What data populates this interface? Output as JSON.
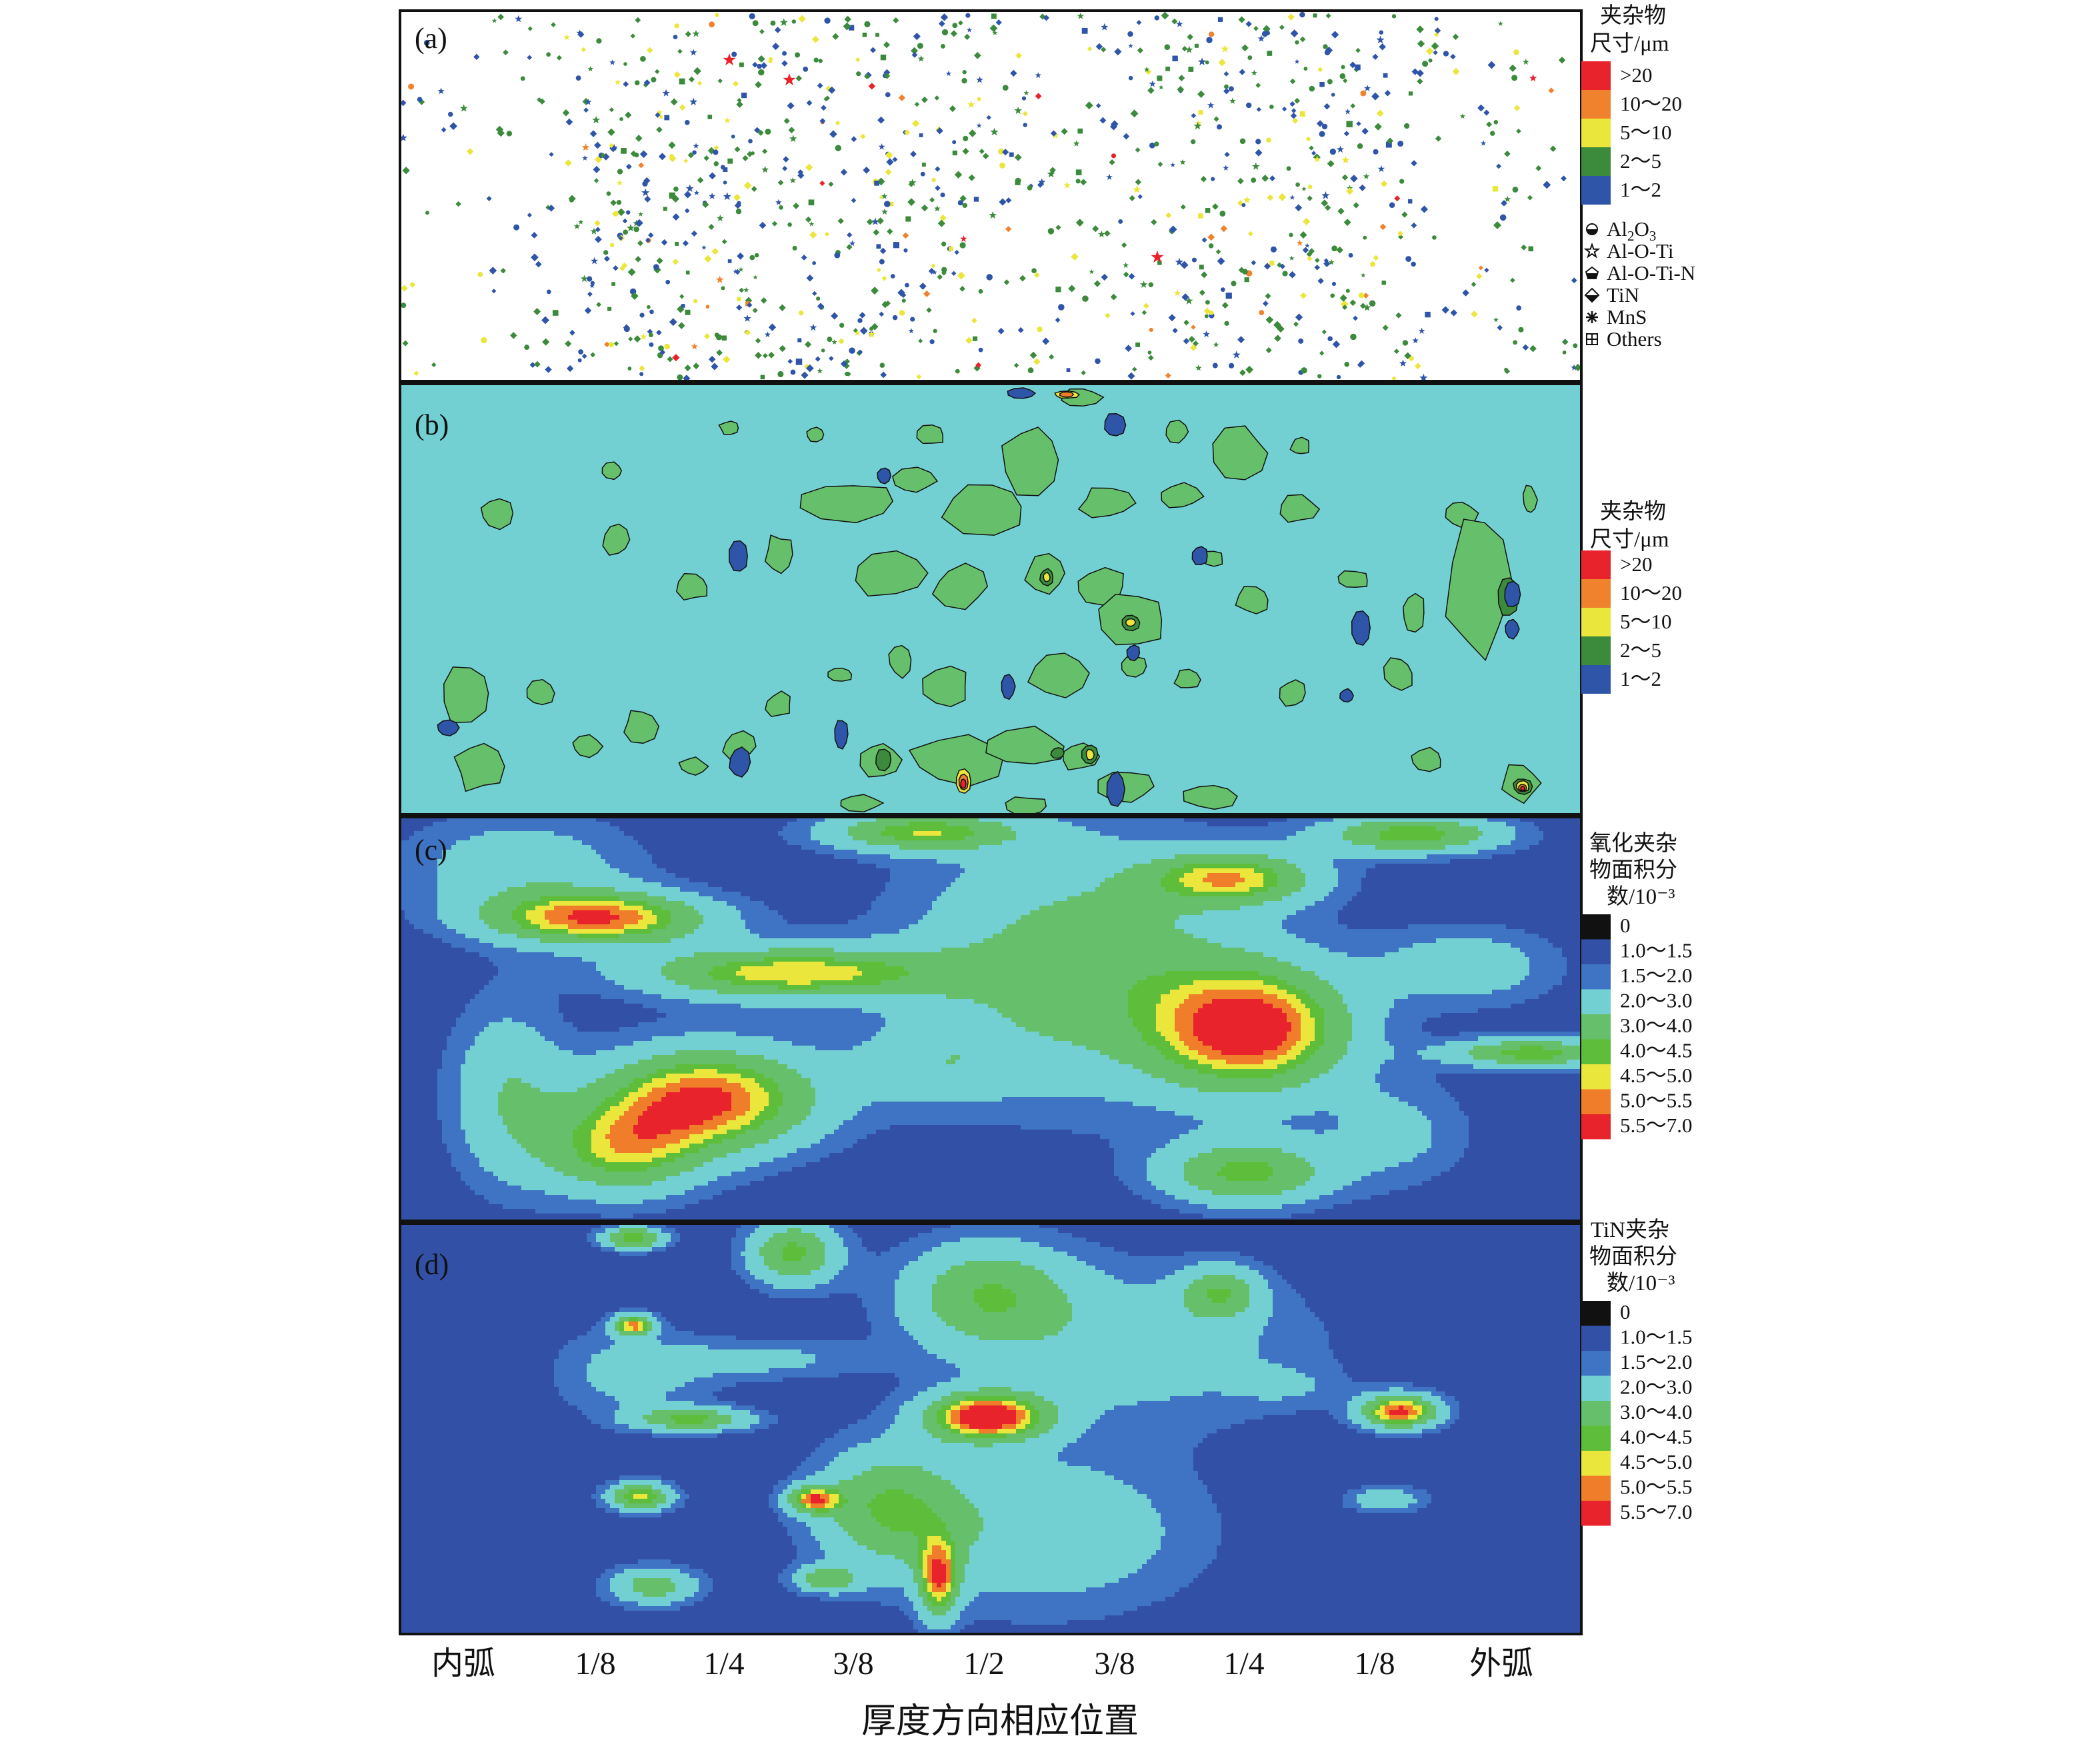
{
  "chart_data": [
    {
      "type": "scatter",
      "panel": "(a)",
      "legend_title": [
        "夹杂物",
        "尺寸/μm"
      ],
      "size_classes": [
        {
          "label": ">20",
          "color": "#e8232b"
        },
        {
          "label": "10～20",
          "color": "#f0822d"
        },
        {
          "label": "5～10",
          "color": "#eae63c"
        },
        {
          "label": "2～5",
          "color": "#3c8a3c"
        },
        {
          "label": "1～2",
          "color": "#2f55a8"
        }
      ],
      "inclusion_types": [
        {
          "label": "Al2O3",
          "label_main": "Al",
          "label_sub": "2",
          "label_main2": "O",
          "label_sub2": "3",
          "icon": "half-filled-circle-icon"
        },
        {
          "label": "Al-O-Ti",
          "icon": "star-icon"
        },
        {
          "label": "Al-O-Ti-N",
          "icon": "half-filled-pentagon-icon"
        },
        {
          "label": "TiN",
          "icon": "half-filled-diamond-icon"
        },
        {
          "label": "MnS",
          "icon": "asterisk-icon"
        },
        {
          "label": "Others",
          "icon": "boxed-plus-icon"
        }
      ]
    },
    {
      "type": "heatmap",
      "panel": "(b)",
      "legend_title": [
        "夹杂物",
        "尺寸/μm"
      ],
      "background_class": "#72d0d2",
      "size_classes": [
        {
          "label": ">20",
          "color": "#e8232b"
        },
        {
          "label": "10～20",
          "color": "#f0822d"
        },
        {
          "label": "5～10",
          "color": "#eae63c"
        },
        {
          "label": "2～5",
          "color": "#3c8a3c"
        },
        {
          "label": "1～2",
          "color": "#2f55a8"
        }
      ]
    },
    {
      "type": "heatmap",
      "panel": "(c)",
      "legend_title": [
        "氧化夹杂",
        "物面积分",
        "数/10⁻³"
      ],
      "levels": [
        {
          "label": "0",
          "color": "#111111"
        },
        {
          "label": "1.0～1.5",
          "color": "#3250a6"
        },
        {
          "label": "1.5～2.0",
          "color": "#3f74c4"
        },
        {
          "label": "2.0～3.0",
          "color": "#72d0d2"
        },
        {
          "label": "3.0～4.0",
          "color": "#66bf6a"
        },
        {
          "label": "4.0～4.5",
          "color": "#5ebd3a"
        },
        {
          "label": "4.5～5.0",
          "color": "#eae63c"
        },
        {
          "label": "5.0～5.5",
          "color": "#ef7d2a"
        },
        {
          "label": "5.5～7.0",
          "color": "#e8232b"
        }
      ]
    },
    {
      "type": "heatmap",
      "panel": "(d)",
      "legend_title": [
        "TiN夹杂",
        "物面积分",
        "数/10⁻³"
      ],
      "levels": [
        {
          "label": "0",
          "color": "#111111"
        },
        {
          "label": "1.0～1.5",
          "color": "#3250a6"
        },
        {
          "label": "1.5～2.0",
          "color": "#3f74c4"
        },
        {
          "label": "2.0～3.0",
          "color": "#72d0d2"
        },
        {
          "label": "3.0～4.0",
          "color": "#66bf6a"
        },
        {
          "label": "4.0～4.5",
          "color": "#5ebd3a"
        },
        {
          "label": "4.5～5.0",
          "color": "#eae63c"
        },
        {
          "label": "5.0～5.5",
          "color": "#ef7d2a"
        },
        {
          "label": "5.5～7.0",
          "color": "#e8232b"
        }
      ]
    }
  ],
  "x_axis": {
    "ticks": [
      "内弧",
      "1/8",
      "1/4",
      "3/8",
      "1/2",
      "3/8",
      "1/4",
      "1/8",
      "外弧"
    ],
    "title": "厚度方向相应位置"
  }
}
